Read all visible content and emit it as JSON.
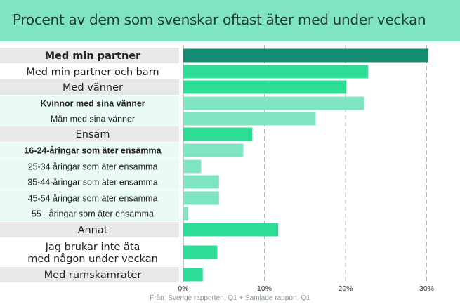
{
  "title": "Procent av dem som svenskar oftast äter med under veckan",
  "source": "Från: Sverige rapporten, Q1 + Samlade rapport, Q1",
  "colors": {
    "header_bg": "#7ee5c0",
    "dark_green": "#148c6f",
    "green": "#2cdd96",
    "light_green": "#7ee5c0",
    "row_grey": "#e9e9e9",
    "row_mint": "#eafaf4"
  },
  "chart_data": {
    "type": "bar",
    "orientation": "horizontal",
    "categories": [
      "Med min partner",
      "Med min partner och barn",
      "Med vänner",
      "Kvinnor med sina vänner",
      "Män med sina vänner",
      "Ensam",
      "16-24-åringar som äter ensamma",
      "25-34 åringar som äter ensamma",
      "35-44-åringar som äter ensamma",
      "45-54 åringar som äter ensamma",
      "55+ åringar som äter ensamma",
      "Annat",
      "Jag brukar inte äta med någon under veckan",
      "Med rumskamrater"
    ],
    "values": [
      30.2,
      22.8,
      20.1,
      22.3,
      16.3,
      8.5,
      7.4,
      2.2,
      4.4,
      4.4,
      0.6,
      11.7,
      4.2,
      2.4
    ],
    "bar_colors": [
      "#148c6f",
      "#2cdd96",
      "#2cdd96",
      "#7ee5c0",
      "#7ee5c0",
      "#2cdd96",
      "#7ee5c0",
      "#7ee5c0",
      "#7ee5c0",
      "#7ee5c0",
      "#7ee5c0",
      "#2cdd96",
      "#2cdd96",
      "#2cdd96"
    ],
    "label_style": [
      "main-bold",
      "main",
      "main",
      "sub-bold",
      "sub",
      "main",
      "sub-bold",
      "sub",
      "sub",
      "sub",
      "sub",
      "main",
      "main",
      "main"
    ],
    "row_background": [
      "grey",
      "none",
      "grey",
      "mint",
      "mint",
      "grey",
      "mint",
      "mint",
      "mint",
      "mint",
      "mint",
      "grey",
      "none",
      "grey"
    ],
    "xlim": [
      0,
      31
    ],
    "xticks": [
      0,
      10,
      20,
      30
    ],
    "xtick_labels": [
      "0%",
      "10%",
      "20%",
      "30%"
    ],
    "grid": "dashed vertical"
  }
}
